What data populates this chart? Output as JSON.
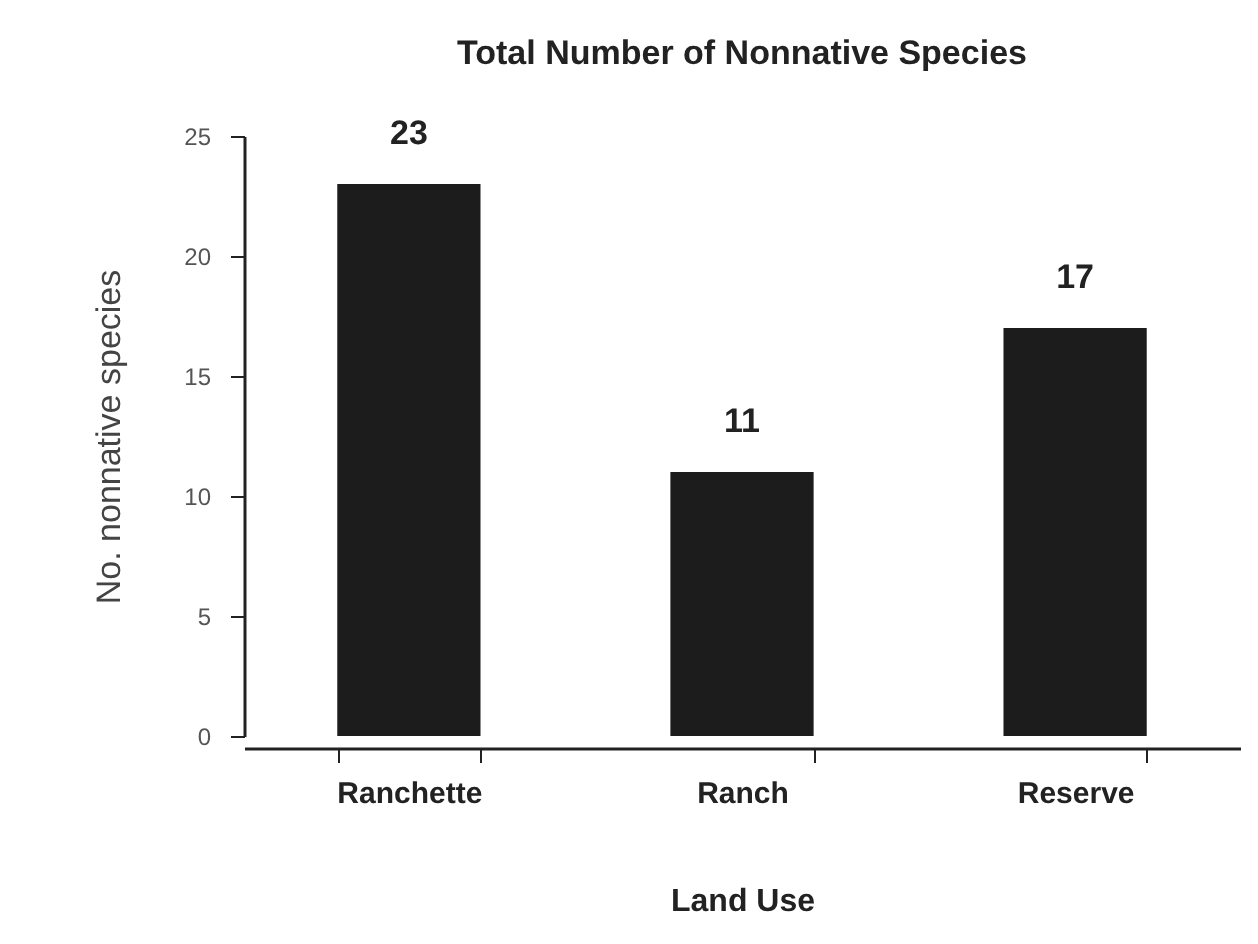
{
  "chart_data": {
    "type": "bar",
    "title": "Total Number of Nonnative Species",
    "xlabel": "Land Use",
    "ylabel": "No. nonnative species",
    "categories": [
      "Ranchette",
      "Ranch",
      "Reserve"
    ],
    "values": [
      23,
      11,
      17
    ],
    "color": "#1c1c1c",
    "ylim": [
      0,
      25
    ],
    "yticks": [
      0,
      5,
      10,
      15,
      20,
      25
    ],
    "data_labels": true
  }
}
